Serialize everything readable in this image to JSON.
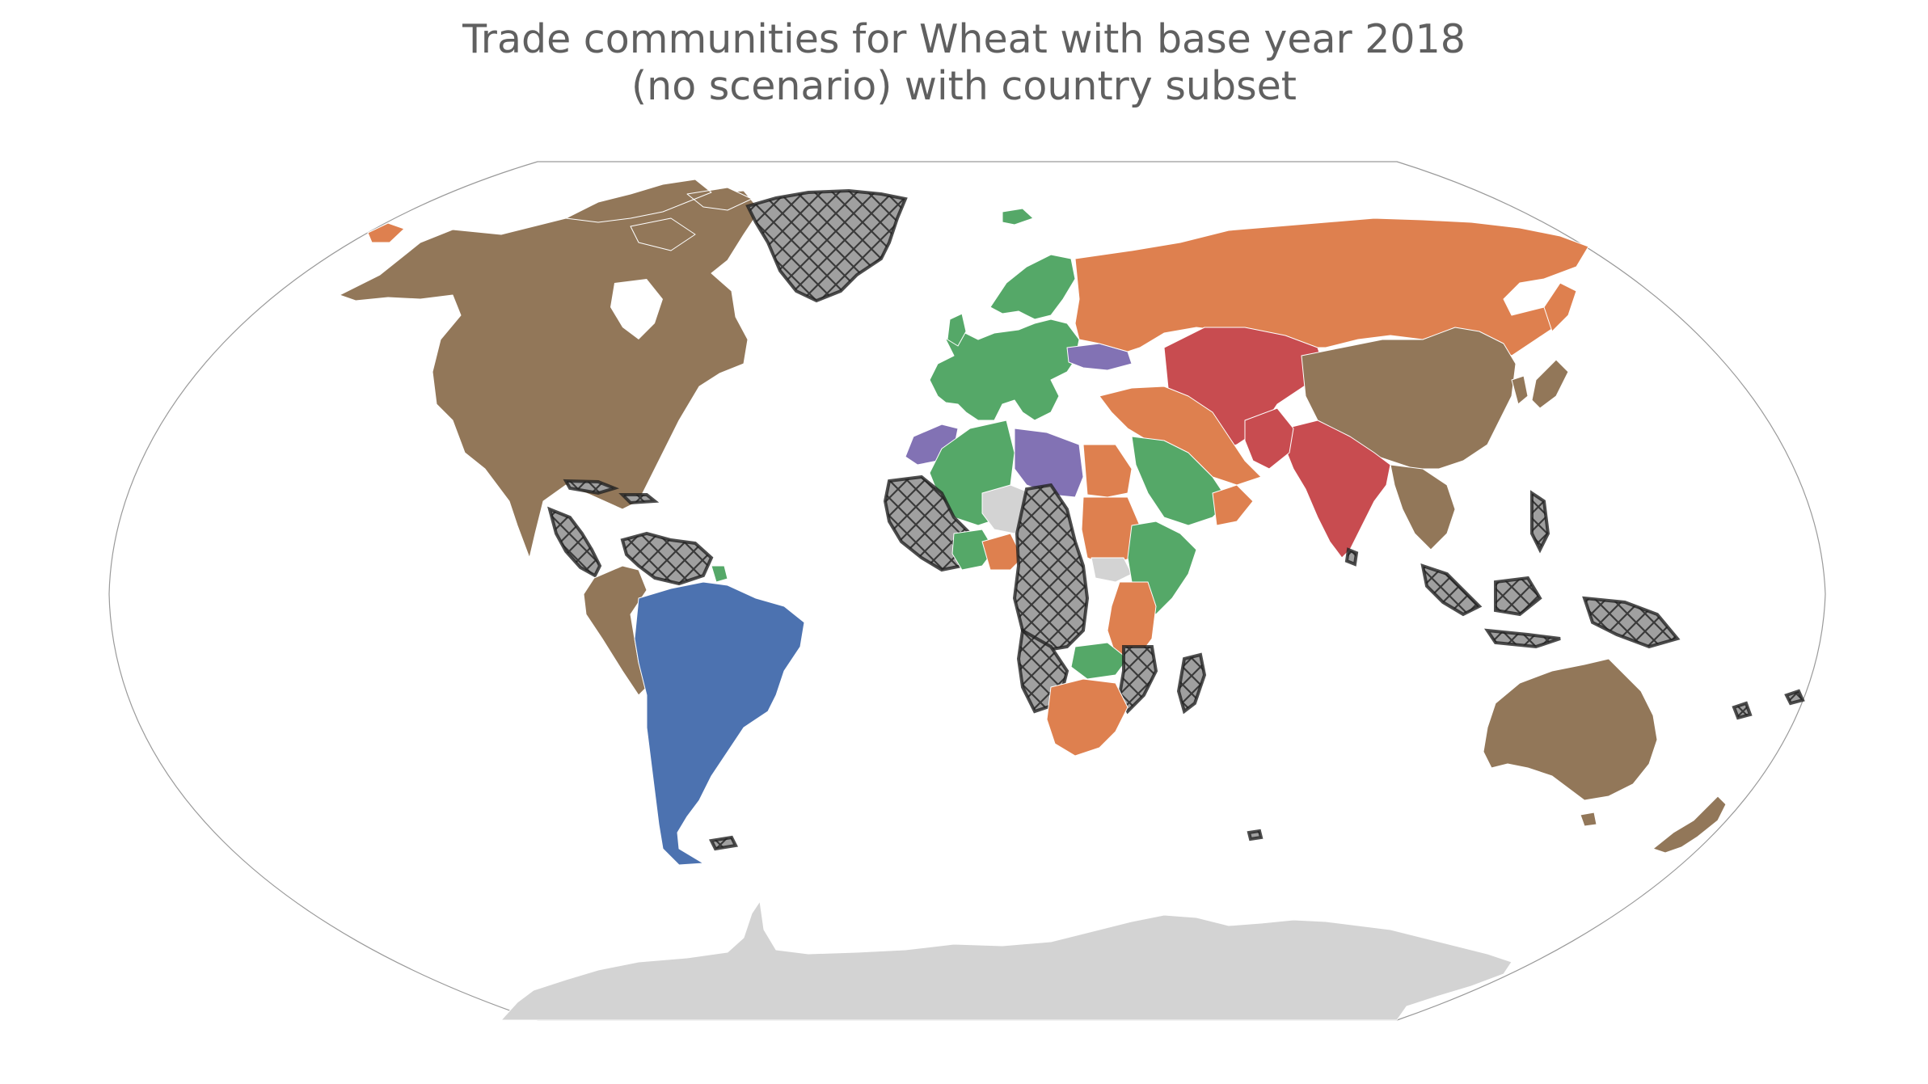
{
  "title": {
    "line1": "Trade communities for Wheat with base year 2018",
    "line2": "(no scenario) with country subset"
  },
  "colors": {
    "community_brown": "#927759",
    "community_orange": "#de804f",
    "community_green": "#55a868",
    "community_blue": "#4c72b0",
    "community_red": "#c84c50",
    "community_purple": "#8272b4",
    "not_in_subset": "#d3d3d3",
    "excluded_hatch": "#a0a0a0",
    "ocean": "#ffffff",
    "frame": "#9a9a9a"
  },
  "legend_semantics": {
    "hatched_regions": "excluded-hatch-pattern",
    "grey_regions": "no-data-grey"
  }
}
